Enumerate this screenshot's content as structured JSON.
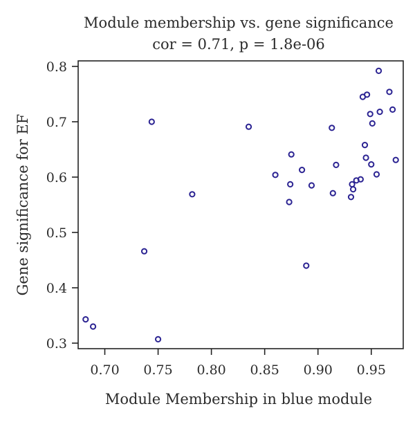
{
  "chart_data": {
    "type": "scatter",
    "title": "Module membership vs. gene significance",
    "subtitle": "cor = 0.71, p = 1.8e-06",
    "xlabel": "Module Membership in blue module",
    "ylabel": "Gene significance for EF",
    "xlim": [
      0.675,
      0.98
    ],
    "ylim": [
      0.29,
      0.81
    ],
    "xticks": [
      "0.70",
      "0.75",
      "0.80",
      "0.85",
      "0.90",
      "0.95"
    ],
    "yticks": [
      "0.3",
      "0.4",
      "0.5",
      "0.6",
      "0.7",
      "0.8"
    ],
    "grid": false,
    "point_color": "#2b2392",
    "points": [
      {
        "x": 0.682,
        "y": 0.343
      },
      {
        "x": 0.689,
        "y": 0.33
      },
      {
        "x": 0.737,
        "y": 0.466
      },
      {
        "x": 0.744,
        "y": 0.7
      },
      {
        "x": 0.75,
        "y": 0.307
      },
      {
        "x": 0.782,
        "y": 0.569
      },
      {
        "x": 0.835,
        "y": 0.691
      },
      {
        "x": 0.86,
        "y": 0.604
      },
      {
        "x": 0.873,
        "y": 0.555
      },
      {
        "x": 0.874,
        "y": 0.587
      },
      {
        "x": 0.875,
        "y": 0.641
      },
      {
        "x": 0.885,
        "y": 0.613
      },
      {
        "x": 0.889,
        "y": 0.44
      },
      {
        "x": 0.894,
        "y": 0.585
      },
      {
        "x": 0.913,
        "y": 0.689
      },
      {
        "x": 0.914,
        "y": 0.571
      },
      {
        "x": 0.917,
        "y": 0.622
      },
      {
        "x": 0.931,
        "y": 0.564
      },
      {
        "x": 0.932,
        "y": 0.587
      },
      {
        "x": 0.933,
        "y": 0.578
      },
      {
        "x": 0.936,
        "y": 0.594
      },
      {
        "x": 0.94,
        "y": 0.596
      },
      {
        "x": 0.942,
        "y": 0.745
      },
      {
        "x": 0.944,
        "y": 0.658
      },
      {
        "x": 0.945,
        "y": 0.635
      },
      {
        "x": 0.946,
        "y": 0.749
      },
      {
        "x": 0.949,
        "y": 0.714
      },
      {
        "x": 0.95,
        "y": 0.623
      },
      {
        "x": 0.951,
        "y": 0.697
      },
      {
        "x": 0.955,
        "y": 0.605
      },
      {
        "x": 0.957,
        "y": 0.792
      },
      {
        "x": 0.958,
        "y": 0.718
      },
      {
        "x": 0.967,
        "y": 0.754
      },
      {
        "x": 0.97,
        "y": 0.722
      },
      {
        "x": 0.973,
        "y": 0.631
      }
    ]
  }
}
